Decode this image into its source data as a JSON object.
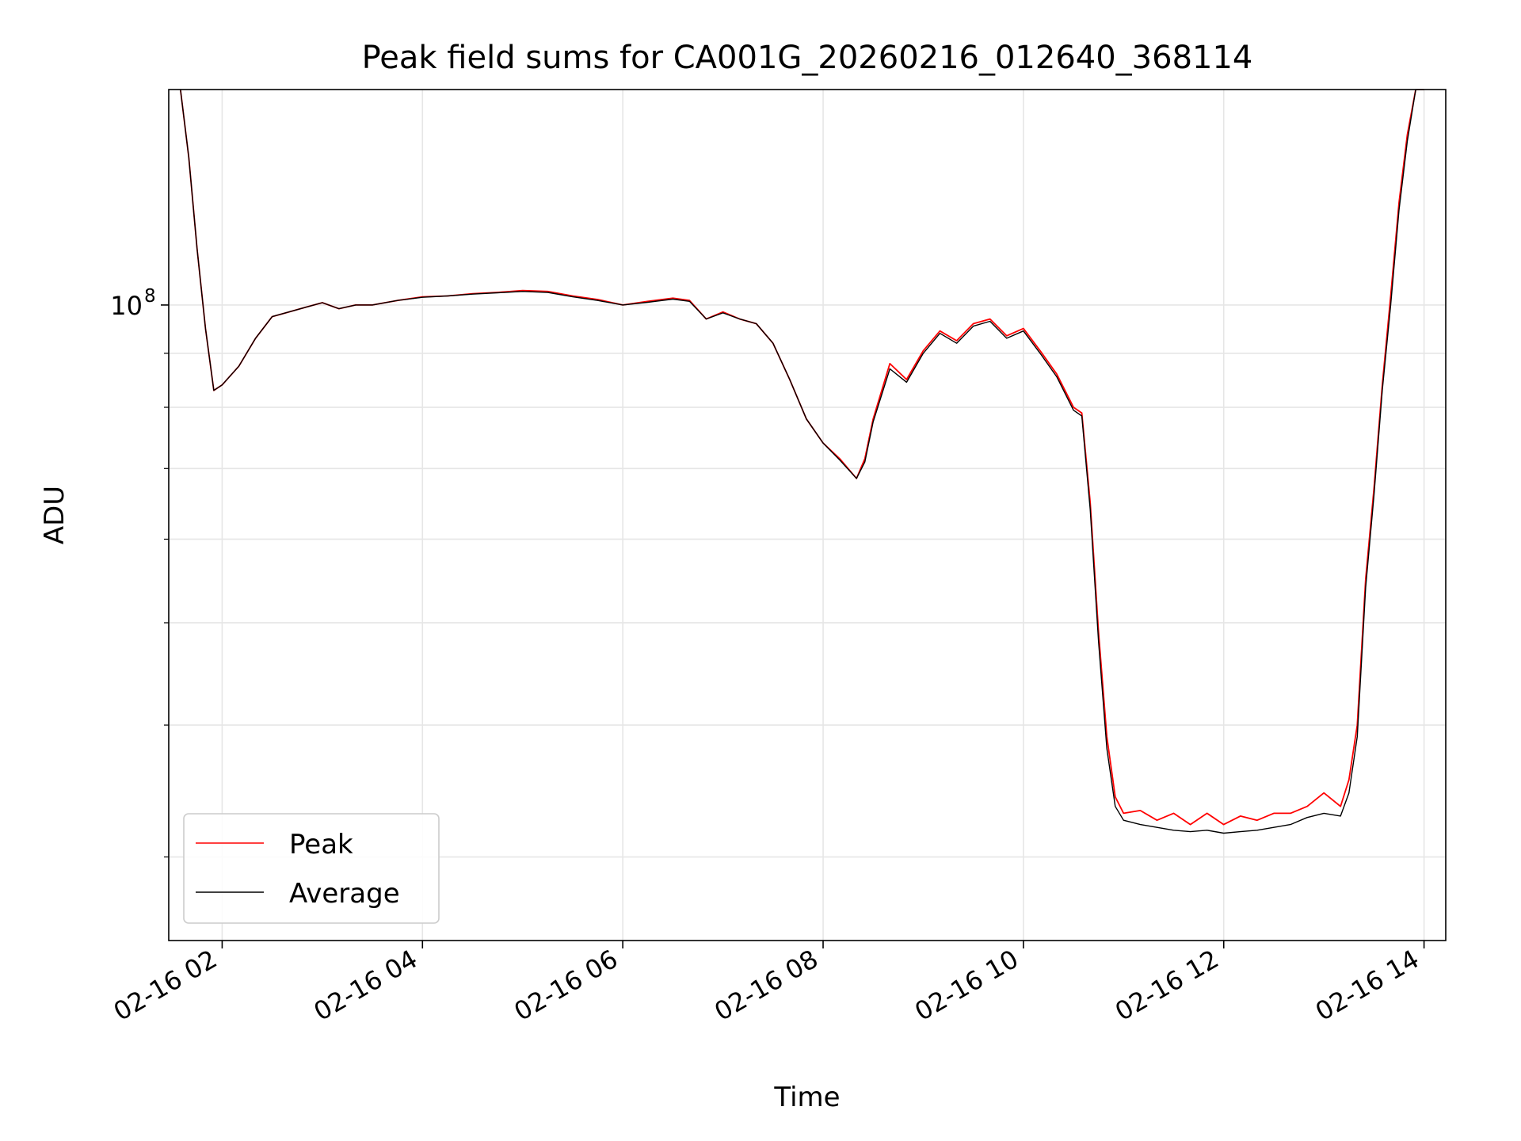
{
  "chart_data": {
    "type": "line",
    "title": "Peak field sums for CA001G_20260216_012640_368114",
    "xlabel": "Time",
    "ylabel": "ADU",
    "yscale": "log",
    "grid": true,
    "legend_position": "lower-left",
    "xlim": [
      "2026-02-16 01:28",
      "2026-02-16 14:13"
    ],
    "ylim": [
      25000000.0,
      160000000.0
    ],
    "x_ticks": [
      "02-16 02",
      "02-16 04",
      "02-16 06",
      "02-16 08",
      "02-16 10",
      "02-16 12",
      "02-16 14"
    ],
    "y_tick_label": {
      "base": "10",
      "exp": "8"
    },
    "series": [
      {
        "name": "Peak",
        "color": "#ff0000",
        "x": [
          "2026-02-16 01:35",
          "2026-02-16 01:40",
          "2026-02-16 01:45",
          "2026-02-16 01:50",
          "2026-02-16 01:55",
          "2026-02-16 02:00",
          "2026-02-16 02:10",
          "2026-02-16 02:20",
          "2026-02-16 02:30",
          "2026-02-16 02:40",
          "2026-02-16 02:50",
          "2026-02-16 03:00",
          "2026-02-16 03:10",
          "2026-02-16 03:20",
          "2026-02-16 03:30",
          "2026-02-16 03:45",
          "2026-02-16 04:00",
          "2026-02-16 04:15",
          "2026-02-16 04:30",
          "2026-02-16 04:45",
          "2026-02-16 05:00",
          "2026-02-16 05:15",
          "2026-02-16 05:30",
          "2026-02-16 05:45",
          "2026-02-16 06:00",
          "2026-02-16 06:15",
          "2026-02-16 06:30",
          "2026-02-16 06:40",
          "2026-02-16 06:50",
          "2026-02-16 07:00",
          "2026-02-16 07:10",
          "2026-02-16 07:20",
          "2026-02-16 07:30",
          "2026-02-16 07:40",
          "2026-02-16 07:50",
          "2026-02-16 08:00",
          "2026-02-16 08:10",
          "2026-02-16 08:20",
          "2026-02-16 08:25",
          "2026-02-16 08:30",
          "2026-02-16 08:40",
          "2026-02-16 08:50",
          "2026-02-16 09:00",
          "2026-02-16 09:10",
          "2026-02-16 09:20",
          "2026-02-16 09:30",
          "2026-02-16 09:40",
          "2026-02-16 09:50",
          "2026-02-16 10:00",
          "2026-02-16 10:10",
          "2026-02-16 10:20",
          "2026-02-16 10:30",
          "2026-02-16 10:35",
          "2026-02-16 10:40",
          "2026-02-16 10:45",
          "2026-02-16 10:50",
          "2026-02-16 10:55",
          "2026-02-16 11:00",
          "2026-02-16 11:10",
          "2026-02-16 11:20",
          "2026-02-16 11:30",
          "2026-02-16 11:40",
          "2026-02-16 11:50",
          "2026-02-16 12:00",
          "2026-02-16 12:10",
          "2026-02-16 12:20",
          "2026-02-16 12:30",
          "2026-02-16 12:40",
          "2026-02-16 12:50",
          "2026-02-16 13:00",
          "2026-02-16 13:10",
          "2026-02-16 13:15",
          "2026-02-16 13:20",
          "2026-02-16 13:25",
          "2026-02-16 13:30",
          "2026-02-16 13:35",
          "2026-02-16 13:40",
          "2026-02-16 13:45",
          "2026-02-16 13:50",
          "2026-02-16 13:55",
          "2026-02-16 14:00"
        ],
        "values": [
          160000000.0,
          138000000.0,
          113000000.0,
          95000000.0,
          83000000.0,
          84000000.0,
          87500000.0,
          93000000.0,
          97500000.0,
          98500000.0,
          99500000.0,
          100500000.0,
          99200000.0,
          100000000.0,
          100000000.0,
          101000000.0,
          101800000.0,
          102000000.0,
          102500000.0,
          102800000.0,
          103200000.0,
          103000000.0,
          102000000.0,
          101200000.0,
          100000000.0,
          100800000.0,
          101500000.0,
          101000000.0,
          97000000.0,
          98500000.0,
          97000000.0,
          96000000.0,
          92000000.0,
          85000000.0,
          78000000.0,
          74000000.0,
          71500000.0,
          68500000.0,
          71500000.0,
          78000000.0,
          88000000.0,
          85000000.0,
          90500000.0,
          94500000.0,
          92500000.0,
          96000000.0,
          97000000.0,
          93500000.0,
          95000000.0,
          90500000.0,
          86000000.0,
          80000000.0,
          79000000.0,
          65000000.0,
          49000000.0,
          39000000.0,
          34200000.0,
          33000000.0,
          33200000.0,
          32500000.0,
          33000000.0,
          32200000.0,
          33000000.0,
          32200000.0,
          32800000.0,
          32500000.0,
          33000000.0,
          33000000.0,
          33500000.0,
          34500000.0,
          33500000.0,
          35500000.0,
          40000000.0,
          55000000.0,
          67000000.0,
          84000000.0,
          102000000.0,
          125000000.0,
          145000000.0,
          160000000.0,
          160000000.0
        ]
      },
      {
        "name": "Average",
        "color": "#000000",
        "x": [
          "2026-02-16 01:35",
          "2026-02-16 01:40",
          "2026-02-16 01:45",
          "2026-02-16 01:50",
          "2026-02-16 01:55",
          "2026-02-16 02:00",
          "2026-02-16 02:10",
          "2026-02-16 02:20",
          "2026-02-16 02:30",
          "2026-02-16 02:40",
          "2026-02-16 02:50",
          "2026-02-16 03:00",
          "2026-02-16 03:10",
          "2026-02-16 03:20",
          "2026-02-16 03:30",
          "2026-02-16 03:45",
          "2026-02-16 04:00",
          "2026-02-16 04:15",
          "2026-02-16 04:30",
          "2026-02-16 04:45",
          "2026-02-16 05:00",
          "2026-02-16 05:15",
          "2026-02-16 05:30",
          "2026-02-16 05:45",
          "2026-02-16 06:00",
          "2026-02-16 06:15",
          "2026-02-16 06:30",
          "2026-02-16 06:40",
          "2026-02-16 06:50",
          "2026-02-16 07:00",
          "2026-02-16 07:10",
          "2026-02-16 07:20",
          "2026-02-16 07:30",
          "2026-02-16 07:40",
          "2026-02-16 07:50",
          "2026-02-16 08:00",
          "2026-02-16 08:10",
          "2026-02-16 08:20",
          "2026-02-16 08:25",
          "2026-02-16 08:30",
          "2026-02-16 08:40",
          "2026-02-16 08:50",
          "2026-02-16 09:00",
          "2026-02-16 09:10",
          "2026-02-16 09:20",
          "2026-02-16 09:30",
          "2026-02-16 09:40",
          "2026-02-16 09:50",
          "2026-02-16 10:00",
          "2026-02-16 10:10",
          "2026-02-16 10:20",
          "2026-02-16 10:30",
          "2026-02-16 10:35",
          "2026-02-16 10:40",
          "2026-02-16 10:45",
          "2026-02-16 10:50",
          "2026-02-16 10:55",
          "2026-02-16 11:00",
          "2026-02-16 11:10",
          "2026-02-16 11:20",
          "2026-02-16 11:30",
          "2026-02-16 11:40",
          "2026-02-16 11:50",
          "2026-02-16 12:00",
          "2026-02-16 12:10",
          "2026-02-16 12:20",
          "2026-02-16 12:30",
          "2026-02-16 12:40",
          "2026-02-16 12:50",
          "2026-02-16 13:00",
          "2026-02-16 13:10",
          "2026-02-16 13:15",
          "2026-02-16 13:20",
          "2026-02-16 13:25",
          "2026-02-16 13:30",
          "2026-02-16 13:35",
          "2026-02-16 13:40",
          "2026-02-16 13:45",
          "2026-02-16 13:50",
          "2026-02-16 13:55",
          "2026-02-16 14:00"
        ],
        "values": [
          160000000.0,
          138000000.0,
          113000000.0,
          95000000.0,
          83000000.0,
          84000000.0,
          87500000.0,
          93000000.0,
          97500000.0,
          98500000.0,
          99500000.0,
          100500000.0,
          99200000.0,
          100000000.0,
          100000000.0,
          101000000.0,
          101700000.0,
          102000000.0,
          102400000.0,
          102700000.0,
          103000000.0,
          102800000.0,
          101800000.0,
          101000000.0,
          100000000.0,
          100600000.0,
          101300000.0,
          100800000.0,
          97000000.0,
          98300000.0,
          97000000.0,
          96000000.0,
          92000000.0,
          85000000.0,
          78000000.0,
          74000000.0,
          71300000.0,
          68500000.0,
          71000000.0,
          77500000.0,
          87000000.0,
          84500000.0,
          90000000.0,
          94000000.0,
          92000000.0,
          95500000.0,
          96500000.0,
          93000000.0,
          94500000.0,
          90000000.0,
          85500000.0,
          79500000.0,
          78500000.0,
          64000000.0,
          48000000.0,
          38000000.0,
          33500000.0,
          32500000.0,
          32200000.0,
          32000000.0,
          31800000.0,
          31700000.0,
          31800000.0,
          31600000.0,
          31700000.0,
          31800000.0,
          32000000.0,
          32200000.0,
          32700000.0,
          33000000.0,
          32800000.0,
          34500000.0,
          39000000.0,
          54000000.0,
          66000000.0,
          83000000.0,
          100000000.0,
          123000000.0,
          143000000.0,
          160000000.0,
          160000000.0
        ]
      }
    ]
  }
}
